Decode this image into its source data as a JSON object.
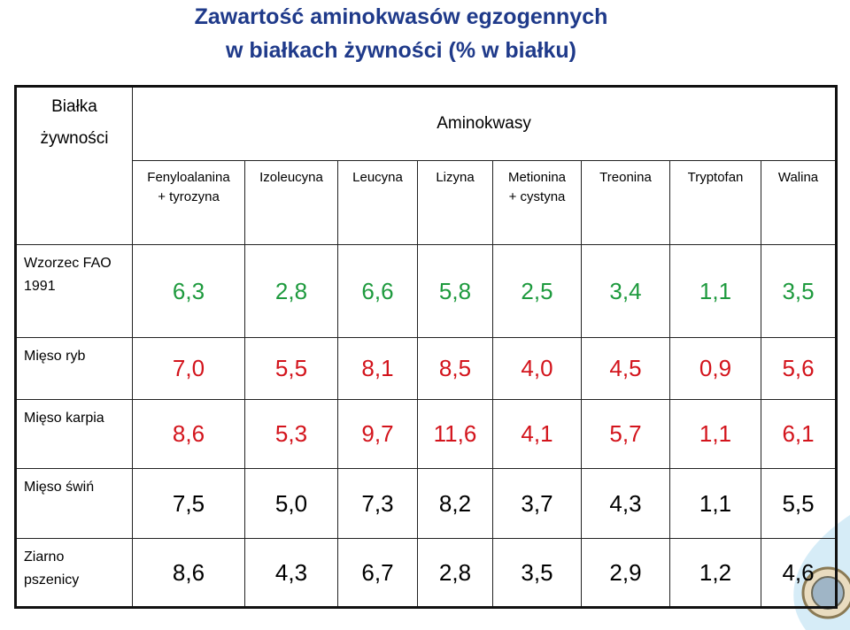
{
  "title": [
    "Zawartość aminokwasów egzogennych",
    "w białkach  żywności (% w białku)"
  ],
  "table": {
    "corner": "Białka\nżywności",
    "group": "Aminokwasy",
    "columns": [
      "Fenyloalanina\n+ tyrozyna",
      "Izoleucyna",
      "Leucyna",
      "Lizyna",
      "Metionina\n+ cystyna",
      "Treonina",
      "Tryptofan",
      "Walina"
    ],
    "rows": [
      {
        "label": "Wzorzec FAO\n1991",
        "color": "#1e9a3e",
        "values": [
          "6,3",
          "2,8",
          "6,6",
          "5,8",
          "2,5",
          "3,4",
          "1,1",
          "3,5"
        ]
      },
      {
        "label": "Mięso ryb",
        "color": "#d3141c",
        "values": [
          "7,0",
          "5,5",
          "8,1",
          "8,5",
          "4,0",
          "4,5",
          "0,9",
          "5,6"
        ]
      },
      {
        "label": "Mięso karpia",
        "color": "#d3141c",
        "values": [
          "8,6",
          "5,3",
          "9,7",
          "11,6",
          "4,1",
          "5,7",
          "1,1",
          "6,1"
        ]
      },
      {
        "label": "Mięso świń",
        "color": "#000000",
        "values": [
          "7,5",
          "5,0",
          "7,3",
          "8,2",
          "3,7",
          "4,3",
          "1,1",
          "5,5"
        ]
      },
      {
        "label": "Ziarno\npszenicy",
        "color": "#000000",
        "values": [
          "8,6",
          "4,3",
          "6,7",
          "2,8",
          "3,5",
          "2,9",
          "1,2",
          "4,6"
        ]
      }
    ]
  }
}
